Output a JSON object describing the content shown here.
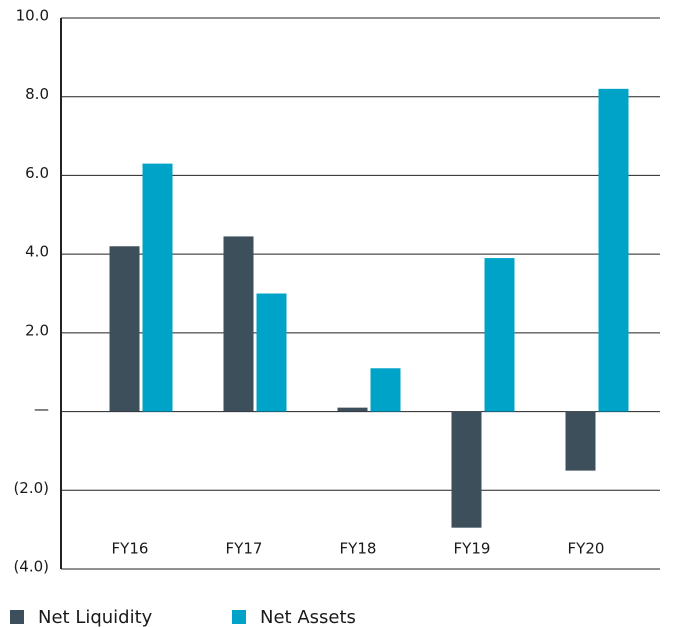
{
  "chart_data": {
    "type": "bar",
    "categories": [
      "FY16",
      "FY17",
      "FY18",
      "FY19",
      "FY20"
    ],
    "series": [
      {
        "name": "Net Liquidity",
        "color": "#3d4f5a",
        "values": [
          4.2,
          4.45,
          0.1,
          -2.95,
          -1.5
        ]
      },
      {
        "name": "Net Assets",
        "color": "#00a3c8",
        "values": [
          6.3,
          3.0,
          1.1,
          3.9,
          8.2
        ]
      }
    ],
    "ylim": [
      -4,
      10
    ],
    "yticks": [
      {
        "value": 10,
        "label": "10.0"
      },
      {
        "value": 8,
        "label": "8.0"
      },
      {
        "value": 6,
        "label": "6.0"
      },
      {
        "value": 4,
        "label": "4.0"
      },
      {
        "value": 2,
        "label": "2.0"
      },
      {
        "value": 0,
        "label": "—"
      },
      {
        "value": -2,
        "label": "(2.0)"
      },
      {
        "value": -4,
        "label": "(4.0)"
      }
    ],
    "grid": true
  }
}
